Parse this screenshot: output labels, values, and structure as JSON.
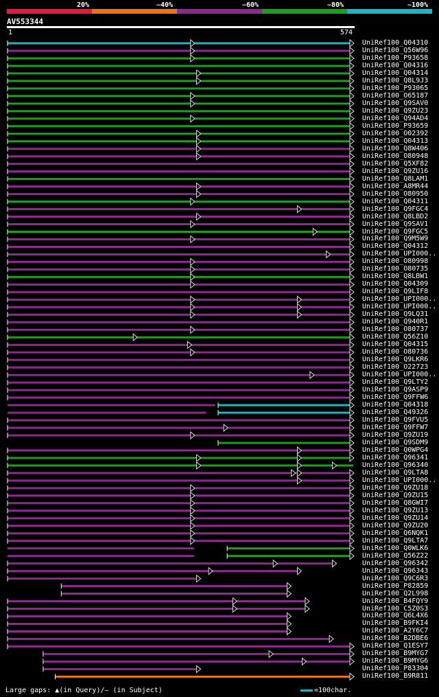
{
  "legend": {
    "labels": [
      "20%",
      "~40%",
      "~60%",
      "~80%",
      "~100%"
    ],
    "colors": [
      "#e8193c",
      "#e8741c",
      "#8e2a8e",
      "#1e9e1e",
      "#1fb3c5"
    ]
  },
  "query": {
    "name": "AV553344",
    "start": "1",
    "end": "574",
    "length": 574
  },
  "footer": {
    "text": "Large gaps: ▲(in Query)/— (in Subject)",
    "scale": "=100char."
  },
  "hits": [
    {
      "id": "UniRef100_Q04310",
      "c": "cyan",
      "s": 1,
      "e": 574,
      "ar": [
        310,
        574
      ]
    },
    {
      "id": "UniRef100_Q56W96",
      "c": "purple",
      "s": 1,
      "e": 574,
      "ar": [
        310,
        574
      ]
    },
    {
      "id": "UniRef100_P93658",
      "c": "green",
      "s": 1,
      "e": 574,
      "ar": [
        310,
        574
      ]
    },
    {
      "id": "UniRef100_Q04316",
      "c": "green",
      "s": 1,
      "e": 574,
      "ar": [
        574
      ]
    },
    {
      "id": "UniRef100_Q04314",
      "c": "green",
      "s": 1,
      "e": 574,
      "ar": [
        320,
        574
      ]
    },
    {
      "id": "UniRef100_Q8L9J3",
      "c": "green",
      "s": 1,
      "e": 574,
      "ar": [
        320,
        574
      ]
    },
    {
      "id": "UniRef100_P93065",
      "c": "green",
      "s": 1,
      "e": 574,
      "ar": [
        574
      ]
    },
    {
      "id": "UniRef100_O65187",
      "c": "green",
      "s": 1,
      "e": 574,
      "ar": [
        310,
        574
      ]
    },
    {
      "id": "UniRef100_Q9SAV0",
      "c": "green",
      "s": 1,
      "e": 574,
      "ar": [
        310,
        574
      ]
    },
    {
      "id": "UniRef100_Q9ZU23",
      "c": "green",
      "s": 1,
      "e": 574,
      "ar": [
        574
      ]
    },
    {
      "id": "UniRef100_Q94AD4",
      "c": "green",
      "s": 1,
      "e": 574,
      "ar": [
        310,
        574
      ]
    },
    {
      "id": "UniRef100_P93659",
      "c": "green",
      "s": 1,
      "e": 574,
      "ar": [
        574
      ]
    },
    {
      "id": "UniRef100_O02392",
      "c": "green",
      "s": 1,
      "e": 574,
      "ar": [
        320,
        574
      ]
    },
    {
      "id": "UniRef100_Q04313",
      "c": "green",
      "s": 1,
      "e": 574,
      "ar": [
        320,
        574
      ]
    },
    {
      "id": "UniRef100_Q8W406",
      "c": "purple",
      "s": 1,
      "e": 574,
      "ar": [
        320,
        574
      ]
    },
    {
      "id": "UniRef100_O80948",
      "c": "purple",
      "s": 1,
      "e": 574,
      "ar": [
        320,
        574
      ]
    },
    {
      "id": "UniRef100_Q5XF82",
      "c": "purple",
      "s": 1,
      "e": 574,
      "ar": [
        574
      ]
    },
    {
      "id": "UniRef100_Q9ZU16",
      "c": "purple",
      "s": 1,
      "e": 574,
      "ar": [
        574
      ]
    },
    {
      "id": "UniRef100_Q8LAM1",
      "c": "green",
      "s": 1,
      "e": 574,
      "ar": [
        574
      ]
    },
    {
      "id": "UniRef100_A8MR44",
      "c": "purple",
      "s": 1,
      "e": 574,
      "ar": [
        320,
        574
      ]
    },
    {
      "id": "UniRef100_O80950",
      "c": "purple",
      "s": 1,
      "e": 574,
      "ar": [
        320,
        574
      ]
    },
    {
      "id": "UniRef100_Q04311",
      "c": "green",
      "s": 1,
      "e": 574,
      "ar": [
        310,
        574
      ]
    },
    {
      "id": "UniRef100_Q9FGC4",
      "c": "purple",
      "s": 1,
      "e": 574,
      "ar": [
        487,
        574
      ]
    },
    {
      "id": "UniRef100_Q8LBD2",
      "c": "purple",
      "s": 1,
      "e": 574,
      "ar": [
        320,
        574
      ]
    },
    {
      "id": "UniRef100_Q9SAV1",
      "c": "purple",
      "s": 1,
      "e": 574,
      "ar": [
        310,
        574
      ]
    },
    {
      "id": "UniRef100_Q9FGC5",
      "c": "green",
      "s": 1,
      "e": 574,
      "ar": [
        513,
        574
      ]
    },
    {
      "id": "UniRef100_Q9M5W9",
      "c": "purple",
      "s": 1,
      "e": 574,
      "ar": [
        310,
        574
      ]
    },
    {
      "id": "UniRef100_Q04312",
      "c": "purple",
      "s": 1,
      "e": 574,
      "ar": [
        574
      ]
    },
    {
      "id": "UniRef100_UPI000..",
      "c": "purple",
      "s": 1,
      "e": 574,
      "ar": [
        535,
        574
      ]
    },
    {
      "id": "UniRef100_O80998",
      "c": "purple",
      "s": 1,
      "e": 574,
      "ar": [
        310,
        574
      ]
    },
    {
      "id": "UniRef100_O80735",
      "c": "purple",
      "s": 1,
      "e": 574,
      "ar": [
        310,
        574
      ]
    },
    {
      "id": "UniRef100_Q8LBW1",
      "c": "green",
      "s": 1,
      "e": 574,
      "ar": [
        310,
        574
      ]
    },
    {
      "id": "UniRef100_Q04309",
      "c": "purple",
      "s": 1,
      "e": 574,
      "ar": [
        310,
        574
      ]
    },
    {
      "id": "UniRef100_Q9LIF8",
      "c": "purple",
      "s": 1,
      "e": 574,
      "ar": [
        574
      ]
    },
    {
      "id": "UniRef100_UPI000..",
      "c": "purple",
      "s": 1,
      "e": 574,
      "ar": [
        310,
        487,
        574
      ]
    },
    {
      "id": "UniRef100_UPI000..",
      "c": "purple",
      "s": 1,
      "e": 574,
      "ar": [
        310,
        487,
        574
      ]
    },
    {
      "id": "UniRef100_Q9LQ31",
      "c": "purple",
      "s": 1,
      "e": 574,
      "ar": [
        310,
        487,
        574
      ]
    },
    {
      "id": "UniRef100_Q940R1",
      "c": "purple",
      "s": 1,
      "e": 574,
      "ar": [
        574
      ]
    },
    {
      "id": "UniRef100_O80737",
      "c": "purple",
      "s": 1,
      "e": 574,
      "ar": [
        310,
        574
      ]
    },
    {
      "id": "UniRef100_Q56Z10",
      "c": "green",
      "s": 1,
      "e": 574,
      "ar": [
        215,
        574
      ]
    },
    {
      "id": "UniRef100_Q04315",
      "c": "purple",
      "s": 1,
      "e": 574,
      "ar": [
        305,
        574
      ]
    },
    {
      "id": "UniRef100_O80736",
      "c": "purple",
      "s": 1,
      "e": 574,
      "ar": [
        310,
        574
      ]
    },
    {
      "id": "UniRef100_Q9LKR6",
      "c": "purple",
      "s": 1,
      "e": 574,
      "ar": [
        574
      ]
    },
    {
      "id": "UniRef100_O22723",
      "c": "purple",
      "s": 1,
      "e": 574,
      "ar": [
        574
      ]
    },
    {
      "id": "UniRef100_UPI000..",
      "c": "purple",
      "s": 1,
      "e": 574,
      "ar": [
        508,
        574
      ]
    },
    {
      "id": "UniRef100_Q9LTY2",
      "c": "purple",
      "s": 1,
      "e": 574,
      "ar": [
        574
      ]
    },
    {
      "id": "UniRef100_Q9ASP9",
      "c": "purple",
      "s": 1,
      "e": 574,
      "ar": [
        574
      ]
    },
    {
      "id": "UniRef100_Q9FFW6",
      "c": "purple",
      "s": 1,
      "e": 574,
      "ar": [
        574
      ]
    },
    {
      "id": "UniRef100_Q04318",
      "c": "cyan",
      "s": 350,
      "e": 574,
      "ar": [
        574
      ],
      "prefix": [
        1,
        345
      ]
    },
    {
      "id": "UniRef100_Q49326",
      "c": "cyan",
      "s": 350,
      "e": 574,
      "ar": [
        574
      ],
      "prefix": [
        1,
        330
      ]
    },
    {
      "id": "UniRef100_Q9FVU5",
      "c": "purple",
      "s": 1,
      "e": 574,
      "ar": [
        574
      ]
    },
    {
      "id": "UniRef100_Q9FFW7",
      "c": "purple",
      "s": 1,
      "e": 574,
      "ar": [
        365,
        574
      ]
    },
    {
      "id": "UniRef100_Q9ZU19",
      "c": "purple",
      "s": 1,
      "e": 574,
      "ar": [
        310,
        574
      ]
    },
    {
      "id": "UniRef100_Q9SDM9",
      "c": "green",
      "s": 350,
      "e": 574,
      "ar": [
        574
      ]
    },
    {
      "id": "UniRef100_Q0WPG4",
      "c": "purple",
      "s": 1,
      "e": 574,
      "ar": [
        487,
        574
      ]
    },
    {
      "id": "UniRef100_Q96341",
      "c": "green",
      "s": 1,
      "e": 574,
      "ar": [
        320,
        487,
        574
      ]
    },
    {
      "id": "UniRef100_Q96340",
      "c": "green",
      "s": 1,
      "e": 574,
      "ar": [
        320,
        487,
        545
      ]
    },
    {
      "id": "UniRef100_Q9LTA8",
      "c": "purple",
      "s": 1,
      "e": 574,
      "ar": [
        477,
        487,
        574
      ]
    },
    {
      "id": "UniRef100_UPI000..",
      "c": "purple",
      "s": 1,
      "e": 574,
      "ar": [
        487,
        574
      ]
    },
    {
      "id": "UniRef100_Q9ZU18",
      "c": "purple",
      "s": 1,
      "e": 574,
      "ar": [
        310,
        574
      ]
    },
    {
      "id": "UniRef100_Q9ZU15",
      "c": "purple",
      "s": 1,
      "e": 574,
      "ar": [
        310,
        574
      ]
    },
    {
      "id": "UniRef100_Q8GWI7",
      "c": "purple",
      "s": 1,
      "e": 574,
      "ar": [
        310,
        574
      ]
    },
    {
      "id": "UniRef100_Q9ZU13",
      "c": "purple",
      "s": 1,
      "e": 574,
      "ar": [
        310,
        574
      ]
    },
    {
      "id": "UniRef100_Q9ZU14",
      "c": "purple",
      "s": 1,
      "e": 574,
      "ar": [
        310,
        574
      ]
    },
    {
      "id": "UniRef100_Q9ZU20",
      "c": "purple",
      "s": 1,
      "e": 574,
      "ar": [
        310,
        574
      ]
    },
    {
      "id": "UniRef100_Q6NQK1",
      "c": "purple",
      "s": 1,
      "e": 574,
      "ar": [
        310,
        574
      ]
    },
    {
      "id": "UniRef100_Q9LTA7",
      "c": "purple",
      "s": 1,
      "e": 574,
      "ar": [
        310,
        574
      ]
    },
    {
      "id": "UniRef100_Q0WLK6",
      "c": "green",
      "s": 365,
      "e": 574,
      "ar": [
        574
      ],
      "prefix": [
        1,
        310
      ]
    },
    {
      "id": "UniRef100_Q56Z22",
      "c": "green",
      "s": 365,
      "e": 574,
      "ar": [
        574
      ],
      "prefix": [
        1,
        310
      ]
    },
    {
      "id": "UniRef100_Q96342",
      "c": "purple",
      "s": 1,
      "e": 545,
      "ar": [
        447,
        545
      ]
    },
    {
      "id": "UniRef100_Q96343",
      "c": "purple",
      "s": 1,
      "e": 487,
      "ar": [
        340,
        487
      ]
    },
    {
      "id": "UniRef100_Q9C6R3",
      "c": "purple",
      "s": 1,
      "e": 320,
      "ar": [
        320
      ]
    },
    {
      "id": "UniRef100_P82859",
      "c": "purple",
      "s": 90,
      "e": 470,
      "ar": [
        470
      ]
    },
    {
      "id": "UniRef100_Q2L998",
      "c": "purple",
      "s": 90,
      "e": 470,
      "ar": [
        470
      ]
    },
    {
      "id": "UniRef100_B4FQY9",
      "c": "purple",
      "s": 1,
      "e": 500,
      "ar": [
        380,
        500
      ]
    },
    {
      "id": "UniRef100_C5Z0S3",
      "c": "purple",
      "s": 1,
      "e": 500,
      "ar": [
        380,
        500
      ]
    },
    {
      "id": "UniRef100_Q6L4X6",
      "c": "purple",
      "s": 1,
      "e": 470,
      "ar": [
        470
      ]
    },
    {
      "id": "UniRef100_B9FKI4",
      "c": "purple",
      "s": 1,
      "e": 470,
      "ar": [
        470
      ]
    },
    {
      "id": "UniRef100_A2Y6C7",
      "c": "purple",
      "s": 1,
      "e": 470,
      "ar": [
        470
      ]
    },
    {
      "id": "UniRef100_B2DBE6",
      "c": "purple",
      "s": 1,
      "e": 540,
      "ar": [
        540
      ]
    },
    {
      "id": "UniRef100_Q1ESY7",
      "c": "purple",
      "s": 1,
      "e": 574,
      "ar": [
        574
      ]
    },
    {
      "id": "UniRef100_B9MYG7",
      "c": "purple",
      "s": 60,
      "e": 574,
      "ar": [
        440,
        574
      ]
    },
    {
      "id": "UniRef100_B9MYG6",
      "c": "purple",
      "s": 60,
      "e": 574,
      "ar": [
        495,
        574
      ]
    },
    {
      "id": "UniRef100_P83304",
      "c": "purple",
      "s": 60,
      "e": 320,
      "ar": [
        320
      ]
    },
    {
      "id": "UniRef100_B9R811",
      "c": "orange",
      "s": 80,
      "e": 574,
      "ar": [
        574
      ]
    }
  ]
}
